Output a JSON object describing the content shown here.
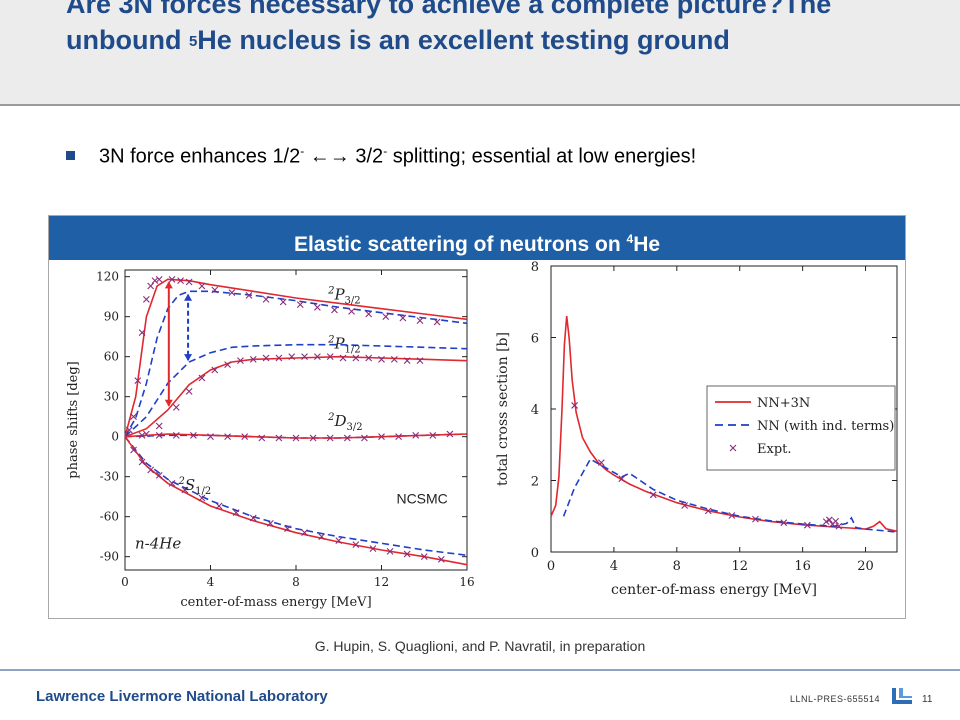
{
  "slide": {
    "title_part1": "Are 3N forces necessary to achieve a complete picture?The unbound ",
    "title_sup": "5",
    "title_part2": "He nucleus is an excellent testing ground",
    "bullet_part1": "3N force enhances 1/2",
    "bullet_sup1": "-",
    "bullet_arrow": " ←→ ",
    "bullet_part2": "3/2",
    "bullet_sup2": "-",
    "bullet_part3": " splitting; essential at low energies!",
    "panel_title_part1": "Elastic scattering of neutrons on ",
    "panel_title_sup": "4",
    "panel_title_part2": "He",
    "citation": "G. Hupin, S. Quaglioni, and P. Navratil, in preparation",
    "footer_lab": "Lawrence Livermore National Laboratory",
    "footer_code": "LLNL-PRES-655514",
    "page_number": "11"
  },
  "colors": {
    "nn3n": "#e0282e",
    "nn": "#1f3fc8",
    "expt": "#8a2b7a",
    "brand": "#1f4b8b",
    "panel": "#1f5fa5"
  },
  "chart_data": [
    {
      "type": "line",
      "xlabel": "center-of-mass energy [MeV]",
      "ylabel": "phase shifts [deg]",
      "xlim": [
        0,
        16
      ],
      "ylim": [
        -100,
        125
      ],
      "xticks": [
        0,
        4,
        8,
        12,
        16
      ],
      "yticks": [
        120,
        90,
        60,
        30,
        0,
        -30,
        -60,
        -90
      ],
      "annotations": {
        "system": "n-4He",
        "method": "NCSMC"
      },
      "channel_labels": [
        "2P3/2",
        "2P1/2",
        "2D3/2",
        "2S1/2"
      ],
      "channels": [
        {
          "name": "2P3/2",
          "label_at": [
            9.5,
            103
          ],
          "nn3n": [
            [
              0,
              0
            ],
            [
              0.5,
              30
            ],
            [
              1,
              90
            ],
            [
              1.5,
              113
            ],
            [
              2,
              118
            ],
            [
              3,
              117
            ],
            [
              4,
              114
            ],
            [
              6,
              109
            ],
            [
              8,
              104
            ],
            [
              10,
              100
            ],
            [
              12,
              96
            ],
            [
              14,
              92
            ],
            [
              16,
              88
            ]
          ],
          "nn": [
            [
              0,
              0
            ],
            [
              0.5,
              14
            ],
            [
              1,
              40
            ],
            [
              1.5,
              74
            ],
            [
              2,
              96
            ],
            [
              2.5,
              106
            ],
            [
              3,
              109
            ],
            [
              4,
              109
            ],
            [
              6,
              106
            ],
            [
              8,
              102
            ],
            [
              10,
              97
            ],
            [
              12,
              93
            ],
            [
              14,
              89
            ],
            [
              16,
              85
            ]
          ],
          "expt": [
            [
              0.2,
              5
            ],
            [
              0.4,
              15
            ],
            [
              0.6,
              42
            ],
            [
              0.8,
              78
            ],
            [
              1.0,
              103
            ],
            [
              1.2,
              113
            ],
            [
              1.4,
              117
            ],
            [
              1.6,
              118
            ],
            [
              2.2,
              118
            ],
            [
              2.6,
              117
            ],
            [
              3.0,
              116
            ],
            [
              3.6,
              113
            ],
            [
              4.2,
              110
            ],
            [
              5.0,
              108
            ],
            [
              5.8,
              106
            ],
            [
              6.6,
              103
            ],
            [
              7.4,
              101
            ],
            [
              8.2,
              99
            ],
            [
              9.0,
              97
            ],
            [
              9.8,
              95
            ],
            [
              10.6,
              94
            ],
            [
              11.4,
              92
            ],
            [
              12.2,
              90
            ],
            [
              13.0,
              89
            ],
            [
              13.8,
              87
            ],
            [
              14.6,
              86
            ]
          ]
        },
        {
          "name": "2P1/2",
          "label_at": [
            9.5,
            66
          ],
          "nn3n": [
            [
              0,
              0
            ],
            [
              1,
              6
            ],
            [
              2,
              20
            ],
            [
              3,
              39
            ],
            [
              4,
              50
            ],
            [
              5,
              56
            ],
            [
              6,
              58
            ],
            [
              8,
              59
            ],
            [
              10,
              60
            ],
            [
              12,
              59
            ],
            [
              14,
              58
            ],
            [
              16,
              57
            ]
          ],
          "nn": [
            [
              0,
              0
            ],
            [
              1,
              15
            ],
            [
              2,
              40
            ],
            [
              3,
              56
            ],
            [
              4,
              63
            ],
            [
              5,
              67
            ],
            [
              6,
              68
            ],
            [
              8,
              69
            ],
            [
              10,
              69
            ],
            [
              12,
              68
            ],
            [
              14,
              67
            ],
            [
              16,
              66
            ]
          ],
          "expt": [
            [
              1.0,
              2
            ],
            [
              1.6,
              8
            ],
            [
              2.4,
              22
            ],
            [
              3.0,
              34
            ],
            [
              3.6,
              44
            ],
            [
              4.2,
              50
            ],
            [
              4.8,
              54
            ],
            [
              5.4,
              57
            ],
            [
              6.0,
              58
            ],
            [
              6.6,
              59
            ],
            [
              7.2,
              59
            ],
            [
              7.8,
              60
            ],
            [
              8.4,
              60
            ],
            [
              9.0,
              60
            ],
            [
              9.6,
              60
            ],
            [
              10.2,
              59
            ],
            [
              10.8,
              59
            ],
            [
              11.4,
              59
            ],
            [
              12.0,
              58
            ],
            [
              12.6,
              58
            ],
            [
              13.2,
              57
            ],
            [
              13.8,
              57
            ]
          ]
        },
        {
          "name": "2D3/2",
          "label_at": [
            9.5,
            8
          ],
          "nn3n": [
            [
              0,
              0
            ],
            [
              2,
              2
            ],
            [
              4,
              1
            ],
            [
              6,
              0
            ],
            [
              8,
              -1
            ],
            [
              10,
              -1
            ],
            [
              12,
              0
            ],
            [
              14,
              1
            ],
            [
              16,
              2
            ]
          ],
          "nn": [
            [
              0,
              0
            ],
            [
              2,
              1
            ],
            [
              4,
              1
            ],
            [
              6,
              0
            ],
            [
              8,
              -1
            ],
            [
              10,
              -1
            ],
            [
              12,
              0
            ],
            [
              14,
              1
            ],
            [
              16,
              2
            ]
          ],
          "expt": [
            [
              0.8,
              1
            ],
            [
              1.6,
              1
            ],
            [
              2.4,
              1
            ],
            [
              3.2,
              1
            ],
            [
              4.0,
              0
            ],
            [
              4.8,
              0
            ],
            [
              5.6,
              0
            ],
            [
              6.4,
              -1
            ],
            [
              7.2,
              -1
            ],
            [
              8.0,
              -1
            ],
            [
              8.8,
              -1
            ],
            [
              9.6,
              -1
            ],
            [
              10.4,
              -1
            ],
            [
              11.2,
              -1
            ],
            [
              12.0,
              0
            ],
            [
              12.8,
              0
            ],
            [
              13.6,
              1
            ],
            [
              14.4,
              1
            ],
            [
              15.2,
              2
            ]
          ]
        },
        {
          "name": "2S1/2",
          "label_at": [
            2.5,
            -40
          ],
          "nn3n": [
            [
              0,
              0
            ],
            [
              1,
              -22
            ],
            [
              2,
              -35
            ],
            [
              4,
              -52
            ],
            [
              6,
              -63
            ],
            [
              8,
              -72
            ],
            [
              10,
              -79
            ],
            [
              12,
              -85
            ],
            [
              14,
              -90
            ],
            [
              16,
              -96
            ]
          ],
          "nn": [
            [
              0,
              0
            ],
            [
              1,
              -20
            ],
            [
              2,
              -32
            ],
            [
              4,
              -48
            ],
            [
              6,
              -60
            ],
            [
              8,
              -69
            ],
            [
              10,
              -75
            ],
            [
              12,
              -80
            ],
            [
              14,
              -85
            ],
            [
              16,
              -89
            ]
          ],
          "expt": [
            [
              0.4,
              -10
            ],
            [
              0.8,
              -19
            ],
            [
              1.2,
              -25
            ],
            [
              1.6,
              -29
            ],
            [
              2.2,
              -35
            ],
            [
              2.8,
              -40
            ],
            [
              3.6,
              -46
            ],
            [
              4.4,
              -52
            ],
            [
              5.2,
              -57
            ],
            [
              6.0,
              -61
            ],
            [
              6.8,
              -65
            ],
            [
              7.6,
              -69
            ],
            [
              8.4,
              -72
            ],
            [
              9.2,
              -75
            ],
            [
              10.0,
              -78
            ],
            [
              10.8,
              -81
            ],
            [
              11.6,
              -84
            ],
            [
              12.4,
              -86
            ],
            [
              13.2,
              -88
            ],
            [
              14.0,
              -90
            ],
            [
              14.8,
              -92
            ]
          ]
        }
      ]
    },
    {
      "type": "line",
      "xlabel": "center-of-mass energy [MeV]",
      "ylabel": "total cross section [b]",
      "xlim": [
        0,
        22
      ],
      "ylim": [
        0,
        8
      ],
      "xticks": [
        0,
        4,
        8,
        12,
        16,
        20
      ],
      "yticks": [
        0,
        2,
        4,
        6,
        8
      ],
      "legend_position": "right",
      "series": [
        {
          "name": "NN+3N",
          "style": "solid",
          "color": "#e0282e",
          "points": [
            [
              0,
              1.0
            ],
            [
              0.3,
              1.3
            ],
            [
              0.5,
              2.1
            ],
            [
              0.7,
              4.0
            ],
            [
              0.85,
              5.8
            ],
            [
              1.0,
              6.6
            ],
            [
              1.15,
              6.0
            ],
            [
              1.35,
              4.8
            ],
            [
              1.6,
              3.9
            ],
            [
              2.0,
              3.2
            ],
            [
              2.5,
              2.8
            ],
            [
              3.0,
              2.5
            ],
            [
              3.5,
              2.3
            ],
            [
              4,
              2.15
            ],
            [
              5,
              1.9
            ],
            [
              6,
              1.7
            ],
            [
              8,
              1.38
            ],
            [
              10,
              1.15
            ],
            [
              12,
              0.98
            ],
            [
              14,
              0.85
            ],
            [
              16,
              0.76
            ],
            [
              18,
              0.7
            ],
            [
              19,
              0.67
            ],
            [
              20,
              0.64
            ],
            [
              20.5,
              0.72
            ],
            [
              20.9,
              0.85
            ],
            [
              21.3,
              0.65
            ],
            [
              22,
              0.58
            ]
          ]
        },
        {
          "name": "NN (with ind. terms)",
          "style": "dashed",
          "color": "#1f3fc8",
          "points": [
            [
              0.8,
              1.0
            ],
            [
              1.5,
              1.8
            ],
            [
              2.5,
              2.6
            ],
            [
              3.5,
              2.35
            ],
            [
              4.5,
              2.1
            ],
            [
              5,
              2.2
            ],
            [
              5.5,
              2.05
            ],
            [
              6.5,
              1.75
            ],
            [
              8,
              1.45
            ],
            [
              10,
              1.2
            ],
            [
              12,
              1.0
            ],
            [
              14,
              0.87
            ],
            [
              16,
              0.78
            ],
            [
              18,
              0.72
            ],
            [
              18.8,
              0.8
            ],
            [
              19.1,
              0.95
            ],
            [
              19.4,
              0.68
            ],
            [
              20,
              0.64
            ],
            [
              22,
              0.56
            ]
          ]
        },
        {
          "name": "Expt.",
          "style": "marker",
          "color": "#8a2b7a",
          "points": [
            [
              1.5,
              4.1
            ],
            [
              3.2,
              2.5
            ],
            [
              4.5,
              2.05
            ],
            [
              6.5,
              1.6
            ],
            [
              8.5,
              1.3
            ],
            [
              10,
              1.15
            ],
            [
              11.5,
              1.02
            ],
            [
              13,
              0.92
            ],
            [
              14.8,
              0.82
            ],
            [
              16.3,
              0.75
            ],
            [
              17.5,
              0.85
            ],
            [
              17.7,
              0.9
            ],
            [
              17.9,
              0.78
            ],
            [
              18.1,
              0.86
            ],
            [
              18.3,
              0.72
            ]
          ]
        }
      ]
    }
  ]
}
